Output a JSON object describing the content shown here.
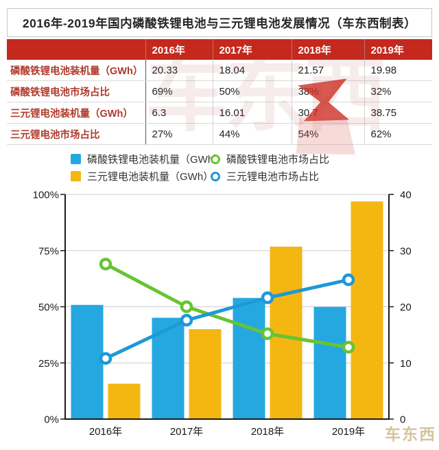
{
  "title": "2016年-2019年国内磷酸铁锂电池与三元锂电池发展情况（车东西制表）",
  "watermark": {
    "center": "车东西",
    "corner": "车东西"
  },
  "table": {
    "header": [
      "",
      "2016年",
      "2017年",
      "2018年",
      "2019年"
    ],
    "rows": [
      {
        "label": "磷酸铁锂电池装机量（GWh）",
        "values": [
          "20.33",
          "18.04",
          "21.57",
          "19.98"
        ]
      },
      {
        "label": "磷酸铁锂电池市场占比",
        "values": [
          "69%",
          "50%",
          "38%",
          "32%"
        ]
      },
      {
        "label": "三元锂电池装机量（GWh）",
        "values": [
          "6.3",
          "16.01",
          "30.7",
          "38.75"
        ]
      },
      {
        "label": "三元锂电池市场占比",
        "values": [
          "27%",
          "44%",
          "54%",
          "62%"
        ]
      }
    ]
  },
  "legend": [
    {
      "key": "lfp-install",
      "marker": "square",
      "color": "#25a8e0",
      "label": "磷酸铁锂电池装机量（GWh）"
    },
    {
      "key": "ternary-install",
      "marker": "square",
      "color": "#f4b711",
      "label": "三元锂电池装机量（GWh）"
    },
    {
      "key": "lfp-share",
      "marker": "ring",
      "color": "#67c433",
      "label": "磷酸铁锂电池市场占比"
    },
    {
      "key": "ternary-share",
      "marker": "ring",
      "color": "#1e98d7",
      "label": "三元锂电池市场占比"
    }
  ],
  "chart_data": {
    "type": "bar+line",
    "categories": [
      "2016年",
      "2017年",
      "2018年",
      "2019年"
    ],
    "series": [
      {
        "key": "lfp-install",
        "name": "磷酸铁锂电池装机量（GWh）",
        "type": "bar",
        "axis": "right",
        "color": "#25a8e0",
        "values": [
          20.33,
          18.04,
          21.57,
          19.98
        ]
      },
      {
        "key": "ternary-install",
        "name": "三元锂电池装机量（GWh）",
        "type": "bar",
        "axis": "right",
        "color": "#f4b711",
        "values": [
          6.3,
          16.01,
          30.7,
          38.75
        ]
      },
      {
        "key": "lfp-share",
        "name": "磷酸铁锂电池市场占比",
        "type": "line",
        "axis": "left",
        "color": "#67c433",
        "values": [
          69,
          50,
          38,
          32
        ]
      },
      {
        "key": "ternary-share",
        "name": "三元锂电池市场占比",
        "type": "line",
        "axis": "left",
        "color": "#1e98d7",
        "values": [
          27,
          44,
          54,
          62
        ]
      }
    ],
    "left_axis": {
      "min": 0,
      "max": 100,
      "tick_values": [
        0,
        25,
        50,
        75,
        100
      ],
      "tick_labels": [
        "0%",
        "25%",
        "50%",
        "75%",
        "100%"
      ]
    },
    "right_axis": {
      "min": 0,
      "max": 40,
      "tick_values": [
        0,
        10,
        20,
        30,
        40
      ],
      "tick_labels": [
        "0",
        "10",
        "20",
        "30",
        "40"
      ]
    },
    "grid": true,
    "legend_position": "top"
  },
  "colors": {
    "header_red": "#c5281c",
    "row_label_red": "#b03a2c",
    "bar_blue": "#25a8e0",
    "bar_yellow": "#f4b711",
    "line_green": "#67c433",
    "line_blue": "#1e98d7",
    "axis": "#1a1a1a",
    "grid": "#cccccc"
  }
}
